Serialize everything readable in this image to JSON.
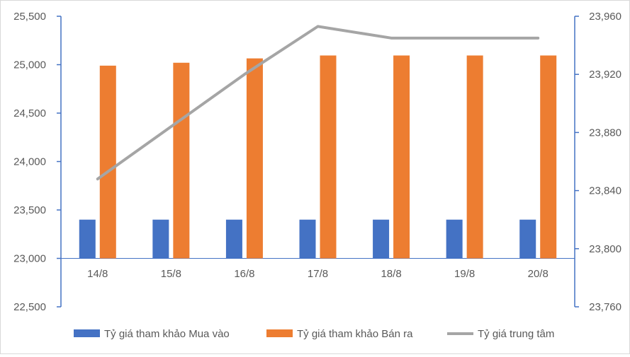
{
  "chart_data": {
    "type": "bar",
    "categories": [
      "14/8",
      "15/8",
      "16/8",
      "17/8",
      "18/8",
      "19/8",
      "20/8"
    ],
    "series": [
      {
        "name": "Tỷ giá tham khảo Mua vào",
        "type": "bar",
        "axis": "left",
        "color": "#4472C4",
        "values": [
          23400,
          23400,
          23400,
          23400,
          23400,
          23400,
          23400
        ]
      },
      {
        "name": "Tỷ giá tham khảo Bán ra",
        "type": "bar",
        "axis": "left",
        "color": "#ED7D31",
        "values": [
          24990,
          25020,
          25065,
          25095,
          25095,
          25095,
          25095
        ]
      },
      {
        "name": "Tỷ giá trung tâm",
        "type": "line",
        "axis": "right",
        "color": "#A5A5A5",
        "values": [
          23848,
          23884,
          23920,
          23953,
          23945,
          23945,
          23945
        ]
      }
    ],
    "ylim": [
      22500,
      25500
    ],
    "y_ticks": [
      "22,500",
      "23,000",
      "23,500",
      "24,000",
      "24,500",
      "25,000",
      "25,500"
    ],
    "y_tick_values": [
      22500,
      23000,
      23500,
      24000,
      24500,
      25000,
      25500
    ],
    "y2lim": [
      23760,
      23960
    ],
    "y2_ticks": [
      "23,760",
      "23,800",
      "23,840",
      "23,880",
      "23,920",
      "23,960"
    ],
    "y2_tick_values": [
      23760,
      23800,
      23840,
      23880,
      23920,
      23960
    ],
    "bar_base": 23000,
    "title": "",
    "xlabel": "",
    "ylabel": "",
    "grid": false,
    "legend_position": "bottom"
  }
}
